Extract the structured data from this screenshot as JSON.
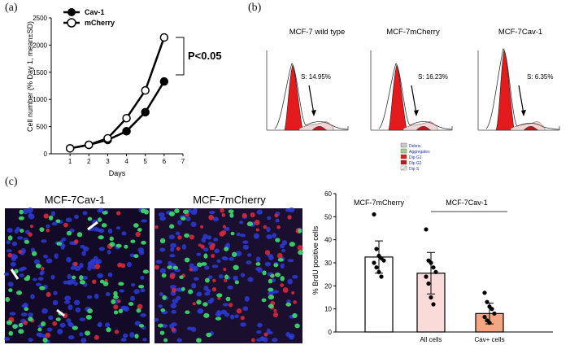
{
  "figure": {
    "panels": {
      "a": "(a)",
      "b": "(b)",
      "c": "(c)"
    }
  },
  "panel_a": {
    "ylabel": "Cell number (% Day 1, mean±SD)",
    "xlabel": "Days",
    "pvalue": "P<0.05",
    "legend": [
      "Cav-1",
      "mCherry"
    ]
  },
  "panel_b": {
    "histograms": [
      {
        "title": "MCF-7 wild type",
        "s_label": "S: 14.95%"
      },
      {
        "title": "MCF-7mCherry",
        "s_label": "S: 16.23%"
      },
      {
        "title": "MCF-7Cav-1",
        "s_label": "S: 6.35%"
      }
    ],
    "legend": [
      "Debris",
      "Aggregates",
      "Dip G1",
      "Dip G2",
      "Dip S"
    ]
  },
  "panel_c": {
    "image_titles": [
      "MCF-7Cav-1",
      "MCF-7mCherry"
    ],
    "bar_group_labels": [
      "MCF-7mCherry",
      "MCF-7Cav-1"
    ]
  },
  "colors": {
    "g1_red": "#e41a1c",
    "bar_pink": "#fbdada",
    "bar_salmon": "#f4a582",
    "nuclei_blue": "#2b2bd6",
    "bg_image": "#1a0f2e"
  },
  "chart_data": [
    {
      "type": "line",
      "panel": "a",
      "xlabel": "Days",
      "ylabel": "Cell number (% Day 1, mean±SD)",
      "x": [
        1,
        2,
        3,
        4,
        5,
        6
      ],
      "xlim": [
        0,
        7
      ],
      "ylim": [
        0,
        2500
      ],
      "yticks": [
        0,
        500,
        1000,
        1500,
        2000,
        2500
      ],
      "xticks": [
        1,
        2,
        3,
        4,
        5,
        6,
        7
      ],
      "series": [
        {
          "name": "Cav-1",
          "marker": "filled",
          "values": [
            100,
            165,
            255,
            415,
            765,
            1330
          ]
        },
        {
          "name": "mCherry",
          "marker": "open",
          "values": [
            100,
            165,
            285,
            655,
            1165,
            2140
          ]
        }
      ],
      "annotation": "P<0.05"
    },
    {
      "type": "bar",
      "panel": "c",
      "ylabel": "% BrdU positive cells",
      "categories": [
        "",
        "All cells",
        "Cav+ cells"
      ],
      "values": [
        32.5,
        25.5,
        8
      ],
      "errors": [
        7,
        9,
        4.5
      ],
      "ylim": [
        0,
        60
      ],
      "yticks": [
        0,
        10,
        20,
        30,
        40,
        50,
        60
      ],
      "bar_colors": [
        "#ffffff",
        "#fbdada",
        "#f4a582"
      ],
      "points": [
        [
          51,
          36,
          33,
          32,
          31,
          30,
          28,
          26,
          24
        ],
        [
          44.5,
          31,
          30,
          28,
          26,
          24,
          21,
          15,
          12
        ],
        [
          17,
          13,
          11,
          10,
          8,
          6.5,
          5,
          4
        ]
      ]
    }
  ]
}
